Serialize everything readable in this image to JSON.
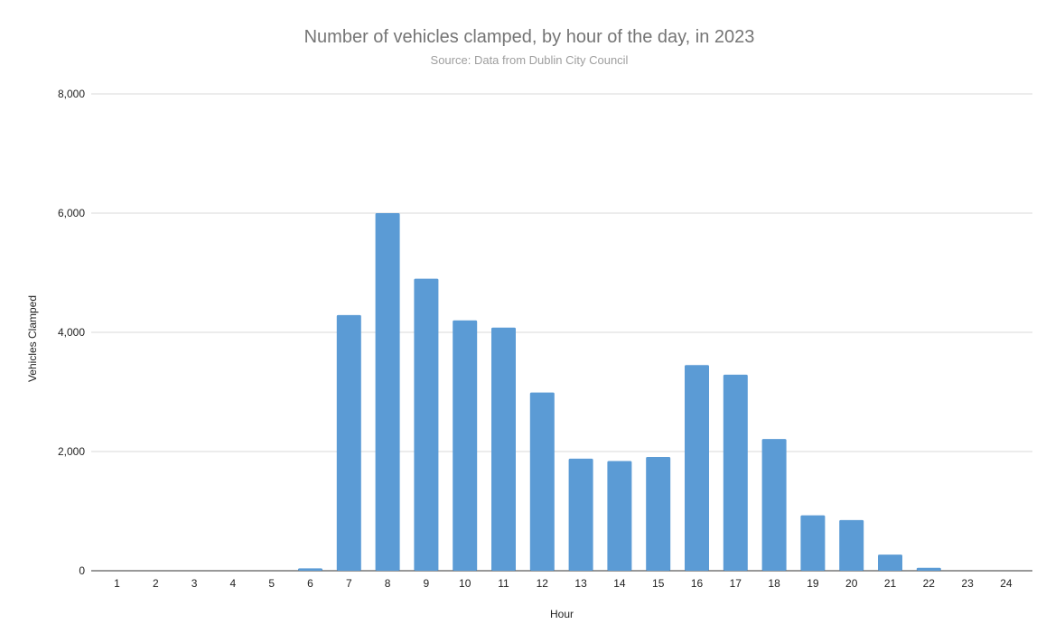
{
  "chart_data": {
    "type": "bar",
    "title": "Number of vehicles clamped, by hour of the day, in 2023",
    "subtitle": "Source: Data from Dublin City Council",
    "xlabel": "Hour",
    "ylabel": "Vehicles Clamped",
    "categories": [
      "1",
      "2",
      "3",
      "4",
      "5",
      "6",
      "7",
      "8",
      "9",
      "10",
      "11",
      "12",
      "13",
      "14",
      "15",
      "16",
      "17",
      "18",
      "19",
      "20",
      "21",
      "22",
      "23",
      "24"
    ],
    "values": [
      0,
      0,
      0,
      0,
      0,
      40,
      4290,
      6000,
      4900,
      4200,
      4080,
      2990,
      1880,
      1840,
      1910,
      3450,
      3290,
      2210,
      930,
      850,
      270,
      50,
      0,
      0
    ],
    "ylim": [
      0,
      8000
    ],
    "yticks": [
      0,
      2000,
      4000,
      6000,
      8000
    ],
    "ytick_labels": [
      "0",
      "2,000",
      "4,000",
      "6,000",
      "8,000"
    ],
    "grid": true,
    "legend": "none",
    "bar_color": "#5b9bd5"
  }
}
